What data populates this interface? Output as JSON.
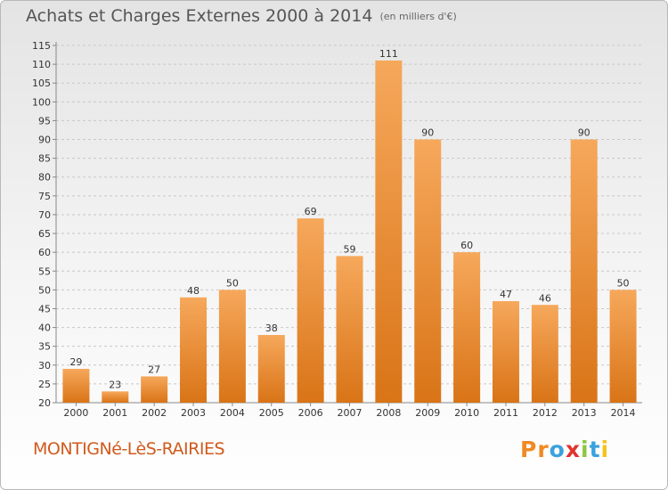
{
  "header": {
    "title": "Achats et Charges Externes 2000 à 2014",
    "subtitle": "(en milliers d'€)"
  },
  "footer": {
    "place": "MONTIGNé-LèS-RAIRIES",
    "logo_text": "Proxiti",
    "logo_colors": [
      "#f08a24",
      "#f08a24",
      "#3aa2dd",
      "#e0342f",
      "#8cc63f",
      "#3aa2dd",
      "#f6c21c"
    ]
  },
  "colors": {
    "bar_top": "#f6a85b",
    "bar_bottom": "#d97417",
    "place": "#d15a1d"
  },
  "chart_data": {
    "type": "bar",
    "title": "Achats et Charges Externes 2000 à 2014",
    "subtitle": "(en milliers d'€)",
    "categories": [
      "2000",
      "2001",
      "2002",
      "2003",
      "2004",
      "2005",
      "2006",
      "2007",
      "2008",
      "2009",
      "2010",
      "2011",
      "2012",
      "2013",
      "2014"
    ],
    "values": [
      29,
      23,
      27,
      48,
      50,
      38,
      69,
      59,
      111,
      90,
      60,
      47,
      46,
      90,
      50
    ],
    "ylim": [
      20,
      115
    ],
    "yticks": [
      20,
      25,
      30,
      35,
      40,
      45,
      50,
      55,
      60,
      65,
      70,
      75,
      80,
      85,
      90,
      95,
      100,
      105,
      110,
      115
    ],
    "grid": "horizontal dashed",
    "xlabel": "",
    "ylabel": ""
  }
}
